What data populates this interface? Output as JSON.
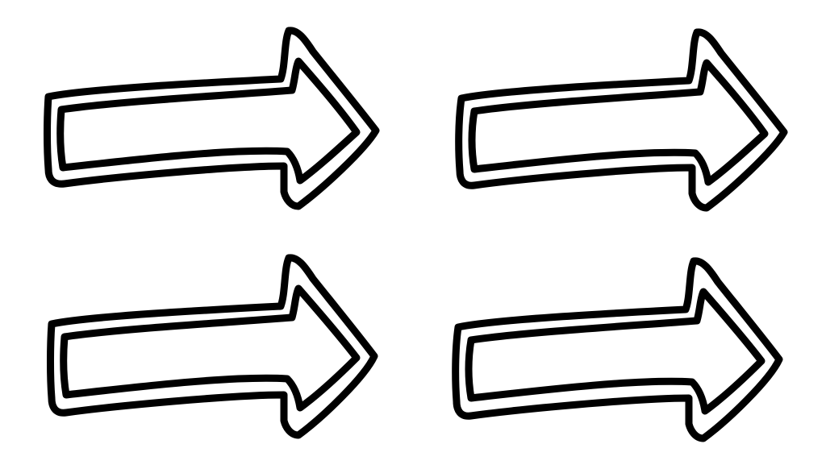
{
  "canvas": {
    "background": "#ffffff"
  },
  "palette": {
    "ink": "#000000",
    "paper": "#ffffff"
  },
  "arrows": [
    {
      "icon": "right-arrow-icon",
      "direction": "right",
      "style": "hand-drawn double outline"
    },
    {
      "icon": "right-arrow-icon",
      "direction": "right",
      "style": "hand-drawn double outline"
    },
    {
      "icon": "right-arrow-icon",
      "direction": "right",
      "style": "hand-drawn double outline"
    },
    {
      "icon": "right-arrow-icon",
      "direction": "right",
      "style": "hand-drawn double outline"
    }
  ]
}
